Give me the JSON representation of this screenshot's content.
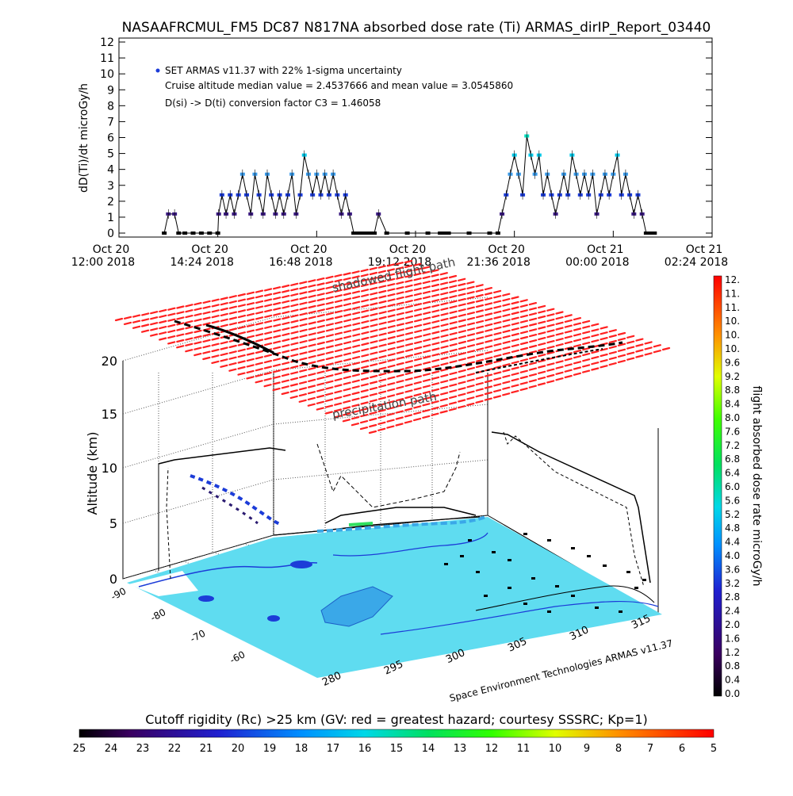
{
  "title": "NASAAFRCMUL_FM5 DC87 N817NA absorbed dose rate (Ti) ARMAS_dirIP_Report_03440",
  "chart_data": [
    {
      "type": "line",
      "ylabel": "dD(Ti)/dt microGy/h",
      "ylim": [
        0,
        12
      ],
      "yticks": [
        "0",
        "1",
        "2",
        "3",
        "4",
        "5",
        "6",
        "7",
        "8",
        "9",
        "10",
        "11",
        "12"
      ],
      "xlim_hours": [
        0,
        14.4
      ],
      "xticks": [
        {
          "l1": "Oct 20",
          "l2": "12:00 2018"
        },
        {
          "l1": "Oct 20",
          "l2": "14:24 2018"
        },
        {
          "l1": "Oct 20",
          "l2": "16:48 2018"
        },
        {
          "l1": "Oct 20",
          "l2": "19:12 2018"
        },
        {
          "l1": "Oct 20",
          "l2": "21:36 2018"
        },
        {
          "l1": "Oct 21",
          "l2": "00:00 2018"
        },
        {
          "l1": "Oct 21",
          "l2": "02:24 2018"
        }
      ],
      "legend": "SET ARMAS v11.37 with 22% 1-sigma uncertainty",
      "annotations": [
        "Cruise altitude median value = 2.4537666 and mean value = 3.0545860",
        "D(si) -> D(ti) conversion factor C3 = 1.46058"
      ],
      "series": [
        {
          "x": [
            1.1,
            1.2,
            1.35,
            1.45,
            1.6,
            1.8,
            2.0,
            2.2,
            2.4,
            2.42,
            2.5,
            2.6,
            2.7,
            2.8,
            2.9,
            3.0,
            3.1,
            3.2,
            3.3,
            3.4,
            3.5,
            3.6,
            3.7,
            3.8,
            3.9,
            4.0,
            4.1,
            4.2,
            4.3,
            4.4,
            4.5,
            4.6,
            4.7,
            4.8,
            4.9,
            5.0,
            5.1,
            5.2,
            5.3,
            5.4,
            5.5,
            5.6,
            5.7,
            5.8,
            5.9,
            6.0,
            6.1,
            6.2,
            6.3,
            6.5,
            7.0,
            7.5,
            7.8,
            7.9,
            8.0,
            8.5,
            9.0,
            9.2,
            9.3,
            9.4,
            9.5,
            9.6,
            9.7,
            9.8,
            9.9,
            10.0,
            10.1,
            10.2,
            10.3,
            10.4,
            10.5,
            10.6,
            10.7,
            10.8,
            10.9,
            11.0,
            11.1,
            11.2,
            11.3,
            11.4,
            11.5,
            11.6,
            11.7,
            11.8,
            11.9,
            12.0,
            12.1,
            12.2,
            12.3,
            12.4,
            12.5,
            12.6,
            12.7,
            12.8,
            12.9,
            13.0
          ],
          "y": [
            0,
            1.2,
            1.2,
            0,
            0,
            0,
            0,
            0,
            0,
            1.2,
            2.4,
            1.2,
            2.4,
            1.2,
            2.4,
            3.7,
            2.4,
            1.2,
            3.7,
            2.4,
            1.2,
            3.7,
            2.4,
            1.2,
            2.4,
            1.2,
            2.4,
            3.7,
            1.2,
            2.4,
            4.9,
            3.7,
            2.4,
            3.7,
            2.4,
            3.7,
            2.4,
            3.7,
            2.4,
            1.2,
            2.4,
            1.2,
            0,
            0,
            0,
            0,
            0,
            0,
            1.2,
            0,
            0,
            0,
            0,
            0,
            0,
            0,
            0,
            0,
            1.2,
            2.4,
            3.7,
            4.9,
            3.7,
            2.4,
            6.1,
            4.9,
            3.7,
            4.9,
            2.4,
            3.7,
            2.4,
            1.2,
            2.4,
            3.7,
            2.4,
            4.9,
            3.7,
            2.4,
            3.7,
            2.4,
            3.7,
            1.2,
            2.4,
            3.7,
            2.4,
            3.7,
            4.9,
            2.4,
            3.7,
            2.4,
            1.2,
            2.4,
            1.2,
            0,
            0,
            0
          ]
        }
      ]
    },
    {
      "type": "scatter",
      "ylabel": "Altitude (km)",
      "zticks": [
        "0",
        "5",
        "10",
        "15",
        "20"
      ],
      "lat_ticks": [
        "-90",
        "-80",
        "-70",
        "-60"
      ],
      "lon_ticks": [
        "280",
        "295",
        "300",
        "305",
        "310",
        "315"
      ],
      "annotations": [
        "shadowed flight path",
        "precipitation path",
        "Space Environment Technologies ARMAS v11.37"
      ],
      "colorbar": {
        "label": "flight absorbed dose rate microGy/h",
        "ticks": [
          "12.",
          "11.",
          "11.",
          "10.",
          "10.",
          "10.",
          "9.6",
          "9.2",
          "8.8",
          "8.4",
          "8.0",
          "7.6",
          "7.2",
          "6.8",
          "6.4",
          "6.0",
          "5.6",
          "5.2",
          "4.8",
          "4.4",
          "4.0",
          "3.6",
          "3.2",
          "2.8",
          "2.4",
          "2.0",
          "1.6",
          "1.2",
          "0.8",
          "0.4",
          "0.0"
        ]
      }
    },
    {
      "type": "heatmap",
      "title": "Cutoff rigidity (Rc) >25 km (GV: red = greatest hazard; courtesy SSSRC; Kp=1)",
      "ticks": [
        "25",
        "24",
        "23",
        "22",
        "21",
        "20",
        "19",
        "18",
        "17",
        "16",
        "15",
        "14",
        "13",
        "12",
        "11",
        "10",
        "9",
        "8",
        "7",
        "6",
        "5"
      ]
    }
  ],
  "colors": {
    "dose_low": "#2a1a70",
    "dose_mid": "#1c3cd8",
    "dose_high": "#00c8e8",
    "surface": "#5fdcf0",
    "red_hazard": "#ff2020"
  }
}
